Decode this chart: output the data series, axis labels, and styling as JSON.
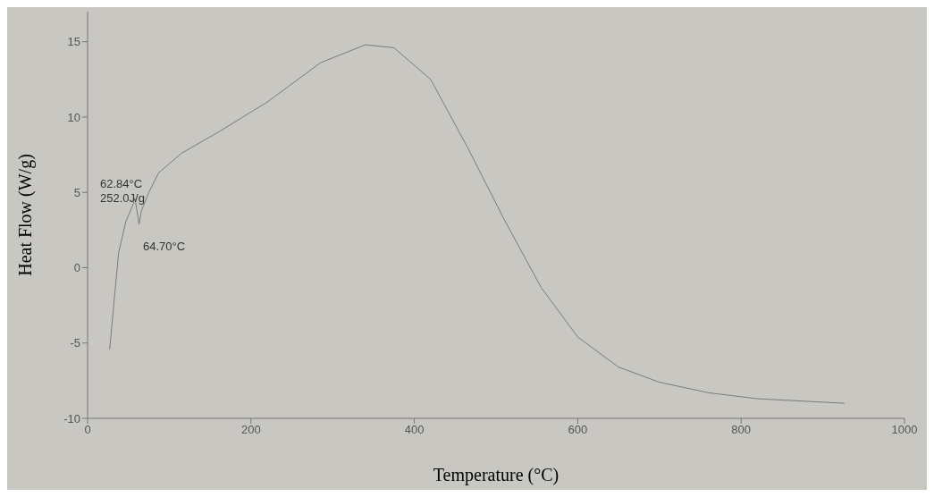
{
  "chart_data": {
    "type": "line",
    "xlabel": "Temperature (°C)",
    "ylabel": "Heat Flow (W/g)",
    "x": [
      27,
      38,
      47,
      55,
      58,
      63,
      66,
      75,
      87,
      115,
      160,
      220,
      285,
      340,
      375,
      420,
      465,
      510,
      555,
      600,
      650,
      700,
      760,
      820,
      926
    ],
    "series": [
      {
        "color": "#7a7a7a",
        "values": [
          -5.4,
          1,
          3.1,
          4.1,
          4.6,
          2.9,
          3.8,
          5,
          6.3,
          7.6,
          9,
          11,
          13.6,
          14.8,
          14.6,
          12.5,
          8,
          3.2,
          -1.3,
          -4.6,
          -6.6,
          -7.6,
          -8.3,
          -8.7,
          -9.0
        ]
      }
    ],
    "xlim": [
      0,
      1000
    ],
    "xticks": [
      0,
      200,
      400,
      600,
      800,
      1000
    ],
    "ylim": [
      -10,
      17
    ],
    "yticks": [
      -10,
      -5,
      0,
      5,
      10,
      15
    ],
    "grid": false,
    "legend": false,
    "marker": "none",
    "line_style": "solid",
    "annotations": [
      "62.84°C",
      "252.0J/g",
      "64.70°C"
    ]
  }
}
